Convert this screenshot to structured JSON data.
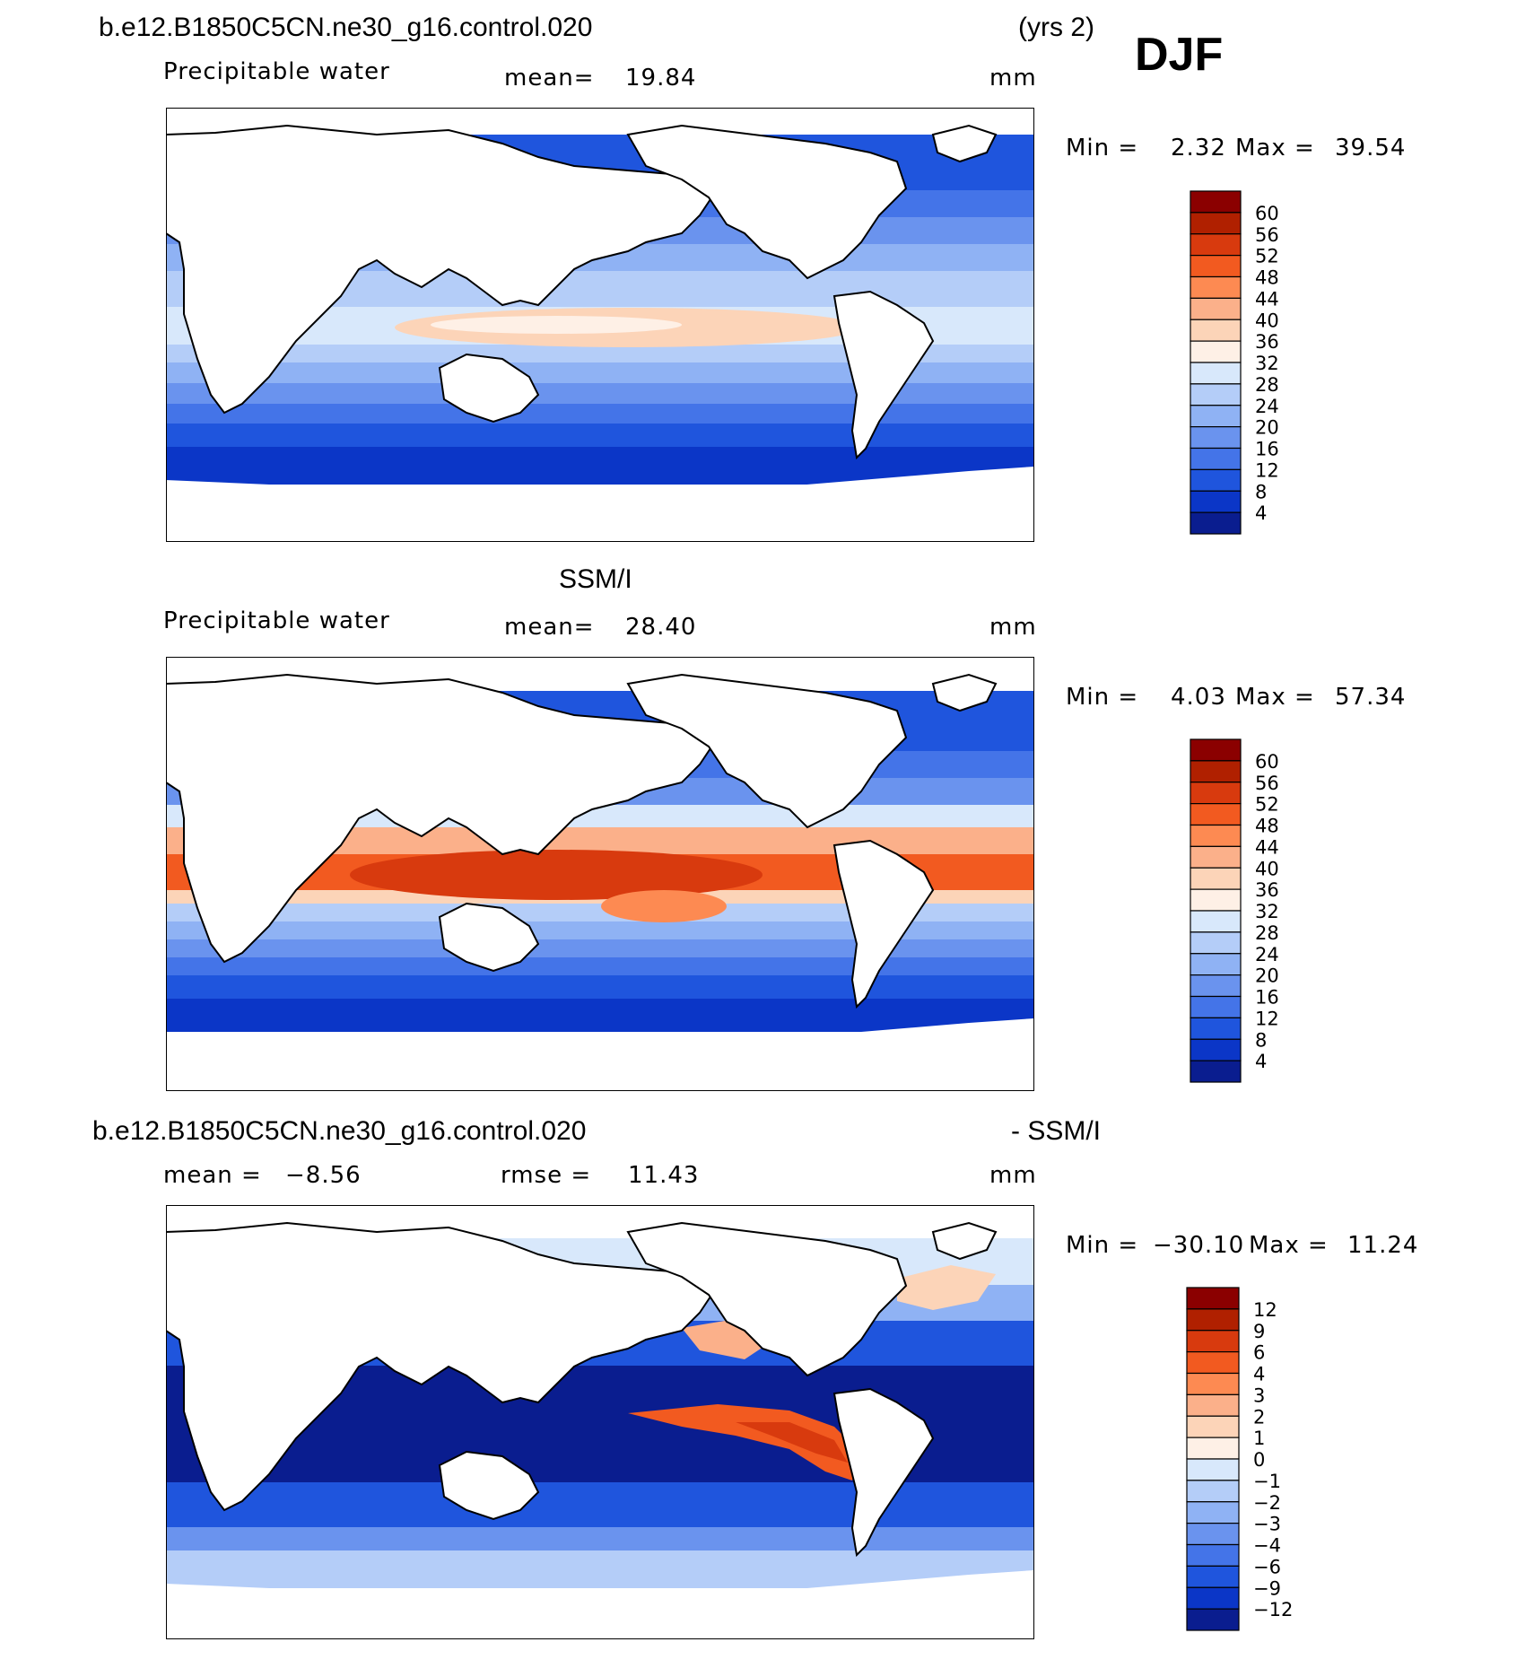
{
  "header": {
    "case_title": "b.e12.B1850C5CN.ne30_g16.control.020",
    "years": "(yrs 2)",
    "season": "DJF"
  },
  "chart_data": [
    {
      "type": "heatmap",
      "id": "model",
      "variable": "Precipitable water",
      "mean_label": "mean=",
      "mean": "19.84",
      "units": "mm",
      "min_label": "Min =",
      "min": "2.32",
      "max_label": "Max =",
      "max": "39.54",
      "levels": [
        "60",
        "56",
        "52",
        "48",
        "44",
        "40",
        "36",
        "32",
        "28",
        "24",
        "20",
        "16",
        "12",
        "8",
        "4"
      ],
      "colors": [
        "#8b0000",
        "#b02000",
        "#d83a0e",
        "#f25a20",
        "#fd8a52",
        "#fbb08a",
        "#fcd4b8",
        "#fef0e6",
        "#d8e8fb",
        "#b4cdf8",
        "#8fb2f4",
        "#6a93ee",
        "#4474e8",
        "#1f55dd",
        "#0b36c7",
        "#0a1d8f"
      ]
    },
    {
      "type": "heatmap",
      "id": "obs",
      "title": "SSM/I",
      "variable": "Precipitable water",
      "mean_label": "mean=",
      "mean": "28.40",
      "units": "mm",
      "min_label": "Min =",
      "min": "4.03",
      "max_label": "Max =",
      "max": "57.34",
      "levels": [
        "60",
        "56",
        "52",
        "48",
        "44",
        "40",
        "36",
        "32",
        "28",
        "24",
        "20",
        "16",
        "12",
        "8",
        "4"
      ],
      "colors": [
        "#8b0000",
        "#b02000",
        "#d83a0e",
        "#f25a20",
        "#fd8a52",
        "#fbb08a",
        "#fcd4b8",
        "#fef0e6",
        "#d8e8fb",
        "#b4cdf8",
        "#8fb2f4",
        "#6a93ee",
        "#4474e8",
        "#1f55dd",
        "#0b36c7",
        "#0a1d8f"
      ]
    },
    {
      "type": "heatmap",
      "id": "diff",
      "title_left": "b.e12.B1850C5CN.ne30_g16.control.020",
      "title_right": "- SSM/I",
      "mean_label": "mean =",
      "mean": "−8.56",
      "rmse_label": "rmse =",
      "rmse": "11.43",
      "units": "mm",
      "min_label": "Min =",
      "min": "−30.10",
      "max_label": "Max =",
      "max": "11.24",
      "levels": [
        "12",
        "9",
        "6",
        "4",
        "3",
        "2",
        "1",
        "0",
        "−1",
        "−2",
        "−3",
        "−4",
        "−6",
        "−9",
        "−12"
      ],
      "colors": [
        "#8b0000",
        "#b02000",
        "#d83a0e",
        "#f25a20",
        "#fd8a52",
        "#fbb08a",
        "#fcd4b8",
        "#fef0e6",
        "#d8e8fb",
        "#b4cdf8",
        "#8fb2f4",
        "#6a93ee",
        "#4474e8",
        "#1f55dd",
        "#0b36c7",
        "#0a1d8f"
      ]
    }
  ]
}
